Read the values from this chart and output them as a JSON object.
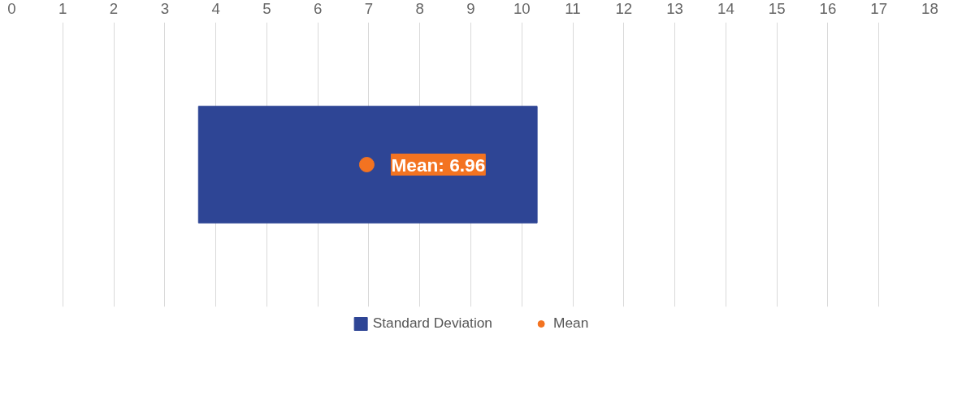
{
  "chart_data": {
    "type": "bar",
    "orientation": "horizontal",
    "categories": [
      null
    ],
    "series": [
      {
        "name": "Standard Deviation",
        "color": "#2e4595",
        "base": [
          3.66
        ],
        "values": [
          6.64
        ]
      },
      {
        "name": "Mean",
        "type": "scatter",
        "color": "#f37321",
        "values": [
          6.96
        ],
        "value_labels": [
          "Mean: 6.96"
        ]
      }
    ],
    "xlim": [
      0,
      18
    ],
    "xticks": [
      0,
      1,
      2,
      3,
      4,
      5,
      6,
      7,
      8,
      9,
      10,
      11,
      12,
      13,
      14,
      15,
      16,
      17,
      18
    ],
    "grid": "x",
    "legend": "bottom",
    "tick_labels": "x",
    "marker": "circle"
  }
}
